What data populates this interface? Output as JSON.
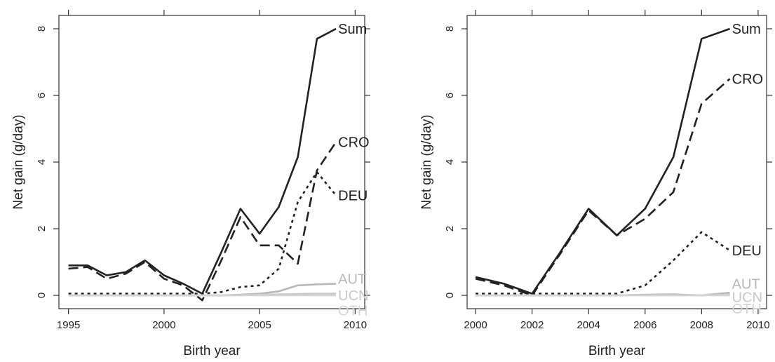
{
  "chart_data": [
    {
      "type": "line",
      "title": "",
      "xlabel": "Birth year",
      "ylabel": "Net gain (g/day)",
      "xlim": [
        1994.5,
        2010.5
      ],
      "ylim": [
        -0.4,
        8.4
      ],
      "x_ticks": [
        1995,
        2000,
        2005,
        2010
      ],
      "y_ticks": [
        0,
        2,
        4,
        6,
        8
      ],
      "grid": false,
      "series": [
        {
          "name": "Sum",
          "style": "solid",
          "color": "#222222",
          "x": [
            1995,
            1996,
            1997,
            1998,
            1999,
            2000,
            2001,
            2002,
            2003,
            2004,
            2005,
            2006,
            2007,
            2008,
            2009
          ],
          "values": [
            0.9,
            0.9,
            0.6,
            0.7,
            1.05,
            0.6,
            0.35,
            0.05,
            1.3,
            2.6,
            1.85,
            2.65,
            4.15,
            7.7,
            8.0
          ]
        },
        {
          "name": "CRO",
          "style": "dashed",
          "color": "#222222",
          "x": [
            1995,
            1996,
            1997,
            1998,
            1999,
            2000,
            2001,
            2002,
            2003,
            2004,
            2005,
            2006,
            2007,
            2008,
            2009
          ],
          "values": [
            0.8,
            0.85,
            0.5,
            0.65,
            1.0,
            0.5,
            0.3,
            -0.15,
            1.05,
            2.35,
            1.5,
            1.5,
            0.95,
            3.75,
            4.6
          ]
        },
        {
          "name": "DEU",
          "style": "dotted",
          "color": "#222222",
          "x": [
            1995,
            1996,
            1997,
            1998,
            1999,
            2000,
            2001,
            2002,
            2003,
            2004,
            2005,
            2006,
            2007,
            2008,
            2009
          ],
          "values": [
            0.05,
            0.05,
            0.05,
            0.05,
            0.05,
            0.05,
            0.05,
            0.05,
            0.1,
            0.25,
            0.3,
            0.8,
            2.8,
            3.7,
            3.0
          ]
        },
        {
          "name": "AUT",
          "style": "solid",
          "color": "#b8b8b8",
          "x": [
            1995,
            1996,
            1997,
            1998,
            1999,
            2000,
            2001,
            2002,
            2003,
            2004,
            2005,
            2006,
            2007,
            2008,
            2009
          ],
          "values": [
            0.0,
            0.0,
            0.0,
            0.0,
            0.0,
            0.0,
            0.0,
            0.0,
            0.0,
            0.02,
            0.05,
            0.12,
            0.3,
            0.33,
            0.35
          ]
        },
        {
          "name": "UCN",
          "style": "solid",
          "color": "#c8c8c8",
          "x": [
            1995,
            1996,
            1997,
            1998,
            1999,
            2000,
            2001,
            2002,
            2003,
            2004,
            2005,
            2006,
            2007,
            2008,
            2009
          ],
          "values": [
            0.0,
            0.0,
            0.0,
            0.0,
            0.0,
            0.0,
            0.0,
            0.0,
            0.0,
            0.0,
            0.02,
            0.03,
            0.04,
            0.05,
            0.05
          ]
        },
        {
          "name": "OTH",
          "style": "solid",
          "color": "#d4d4d4",
          "x": [
            1995,
            1996,
            1997,
            1998,
            1999,
            2000,
            2001,
            2002,
            2003,
            2004,
            2005,
            2006,
            2007,
            2008,
            2009
          ],
          "values": [
            0.0,
            0.0,
            0.0,
            0.0,
            0.0,
            0.0,
            0.0,
            0.0,
            0.0,
            0.0,
            0.0,
            0.0,
            0.0,
            0.0,
            0.0
          ]
        }
      ],
      "labels": [
        {
          "text": "Sum",
          "x": 2009,
          "y": 8.0,
          "color": "#222222"
        },
        {
          "text": "CRO",
          "x": 2009,
          "y": 4.6,
          "color": "#222222"
        },
        {
          "text": "DEU",
          "x": 2009,
          "y": 3.0,
          "color": "#222222"
        },
        {
          "text": "AUT",
          "x": 2009,
          "y": 0.5,
          "color": "#b8b8b8"
        },
        {
          "text": "UCN",
          "x": 2009,
          "y": 0.0,
          "color": "#c8c8c8"
        },
        {
          "text": "OTH",
          "x": 2009,
          "y": -0.45,
          "color": "#d4d4d4"
        }
      ]
    },
    {
      "type": "line",
      "title": "",
      "xlabel": "Birth year",
      "ylabel": "Net gain (g/day)",
      "xlim": [
        1999.7,
        2010.3
      ],
      "ylim": [
        -0.4,
        8.4
      ],
      "x_ticks": [
        2000,
        2002,
        2004,
        2006,
        2008,
        2010
      ],
      "y_ticks": [
        0,
        2,
        4,
        6,
        8
      ],
      "grid": false,
      "series": [
        {
          "name": "Sum",
          "style": "solid",
          "color": "#222222",
          "x": [
            2000,
            2001,
            2002,
            2003,
            2004,
            2005,
            2006,
            2007,
            2008,
            2009
          ],
          "values": [
            0.55,
            0.35,
            0.05,
            1.3,
            2.6,
            1.8,
            2.6,
            4.15,
            7.7,
            8.0
          ]
        },
        {
          "name": "CRO",
          "style": "dashed",
          "color": "#222222",
          "x": [
            2000,
            2001,
            2002,
            2003,
            2004,
            2005,
            2006,
            2007,
            2008,
            2009
          ],
          "values": [
            0.5,
            0.3,
            0.0,
            1.25,
            2.55,
            1.8,
            2.3,
            3.1,
            5.75,
            6.5
          ]
        },
        {
          "name": "DEU",
          "style": "dotted",
          "color": "#222222",
          "x": [
            2000,
            2001,
            2002,
            2003,
            2004,
            2005,
            2006,
            2007,
            2008,
            2009
          ],
          "values": [
            0.05,
            0.05,
            0.05,
            0.05,
            0.05,
            0.05,
            0.3,
            1.05,
            1.9,
            1.35
          ]
        },
        {
          "name": "AUT",
          "style": "solid",
          "color": "#b8b8b8",
          "x": [
            2000,
            2001,
            2002,
            2003,
            2004,
            2005,
            2006,
            2007,
            2008,
            2009
          ],
          "values": [
            0.0,
            0.0,
            0.0,
            0.0,
            0.0,
            0.0,
            0.02,
            0.03,
            0.0,
            0.08
          ]
        },
        {
          "name": "UCN",
          "style": "solid",
          "color": "#c8c8c8",
          "x": [
            2000,
            2001,
            2002,
            2003,
            2004,
            2005,
            2006,
            2007,
            2008,
            2009
          ],
          "values": [
            0.0,
            0.0,
            0.0,
            0.0,
            0.0,
            0.0,
            0.0,
            0.0,
            0.0,
            0.03
          ]
        },
        {
          "name": "OTH",
          "style": "solid",
          "color": "#d4d4d4",
          "x": [
            2000,
            2001,
            2002,
            2003,
            2004,
            2005,
            2006,
            2007,
            2008,
            2009
          ],
          "values": [
            0.0,
            0.0,
            0.0,
            0.0,
            0.0,
            0.0,
            0.0,
            0.0,
            0.0,
            0.0
          ]
        }
      ],
      "labels": [
        {
          "text": "Sum",
          "x": 2009,
          "y": 8.0,
          "color": "#222222"
        },
        {
          "text": "CRO",
          "x": 2009,
          "y": 6.5,
          "color": "#222222"
        },
        {
          "text": "DEU",
          "x": 2009,
          "y": 1.35,
          "color": "#222222"
        },
        {
          "text": "AUT",
          "x": 2009,
          "y": 0.35,
          "color": "#b8b8b8"
        },
        {
          "text": "UCN",
          "x": 2009,
          "y": -0.05,
          "color": "#c8c8c8"
        },
        {
          "text": "OTH",
          "x": 2009,
          "y": -0.4,
          "color": "#d4d4d4"
        }
      ]
    }
  ]
}
